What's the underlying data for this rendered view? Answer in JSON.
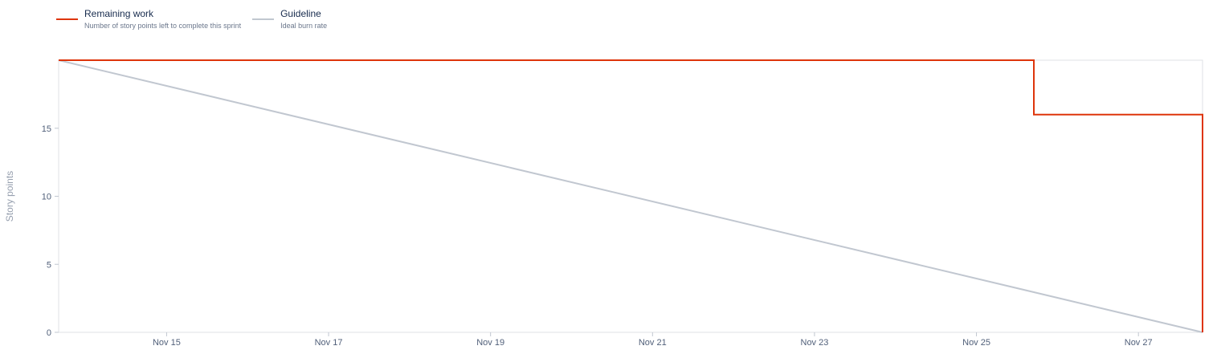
{
  "legend": {
    "remaining": {
      "label": "Remaining work",
      "description": "Number of story points left to complete this sprint",
      "color": "#de350b"
    },
    "guideline": {
      "label": "Guideline",
      "description": "Ideal burn rate",
      "color": "#c1c7d0"
    }
  },
  "chart_data": {
    "type": "line",
    "ylabel": "Story points",
    "xlabel": "",
    "title": "",
    "xlim": [
      "2023-11-13T16:00",
      "2023-11-27T19:00"
    ],
    "ylim": [
      0,
      20
    ],
    "y_ticks": [
      0,
      5,
      10,
      15
    ],
    "x_ticks": [
      {
        "date": "2023-11-15",
        "label": "Nov 15"
      },
      {
        "date": "2023-11-17",
        "label": "Nov 17"
      },
      {
        "date": "2023-11-19",
        "label": "Nov 19"
      },
      {
        "date": "2023-11-21",
        "label": "Nov 21"
      },
      {
        "date": "2023-11-23",
        "label": "Nov 23"
      },
      {
        "date": "2023-11-25",
        "label": "Nov 25"
      },
      {
        "date": "2023-11-27",
        "label": "Nov 27"
      }
    ],
    "grid": false,
    "legend_position": "top-left",
    "series": [
      {
        "name": "Guideline",
        "color": "#c1c7d0",
        "points": [
          {
            "x": "2023-11-13T16:00",
            "y": 20
          },
          {
            "x": "2023-11-27T19:00",
            "y": 0
          }
        ]
      },
      {
        "name": "Remaining work",
        "color": "#de350b",
        "step": true,
        "points": [
          {
            "x": "2023-11-13T16:00",
            "y": 20
          },
          {
            "x": "2023-11-25T17:00",
            "y": 20
          },
          {
            "x": "2023-11-25T17:00",
            "y": 16
          },
          {
            "x": "2023-11-27T19:00",
            "y": 16
          },
          {
            "x": "2023-11-27T19:00",
            "y": 0
          }
        ]
      }
    ]
  }
}
